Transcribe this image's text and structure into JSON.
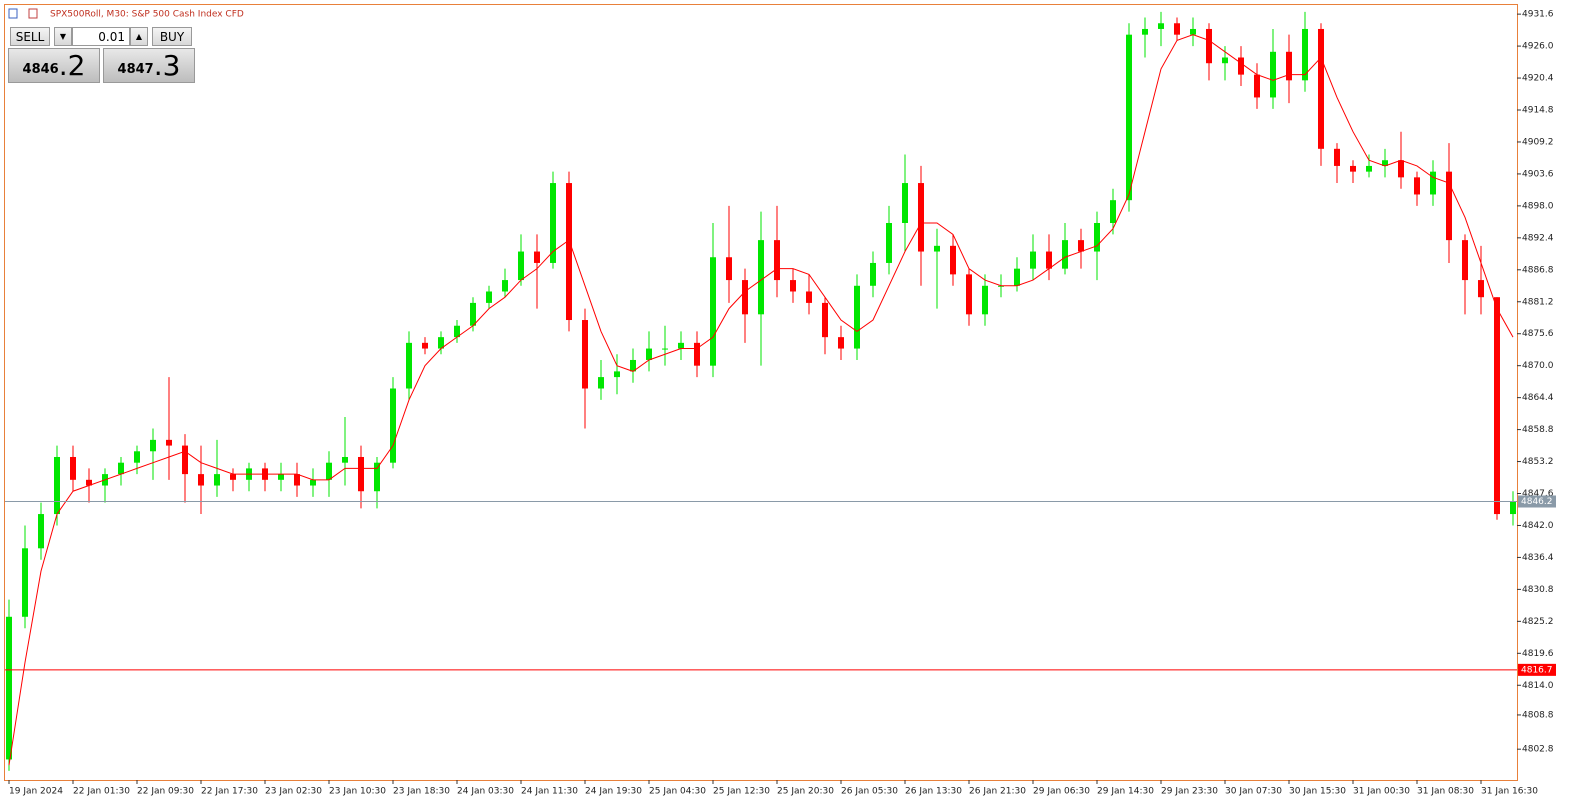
{
  "chart_data": {
    "type": "candlestick",
    "title": "SPX500Roll, M30:  S&P 500 Cash Index CFD",
    "categories": [
      "19 Jan 2024",
      null,
      null,
      null,
      "22 Jan 01:30",
      null,
      null,
      null,
      "22 Jan 09:30",
      null,
      null,
      null,
      "22 Jan 17:30",
      null,
      null,
      null,
      "23 Jan 02:30",
      null,
      null,
      null,
      "23 Jan 10:30",
      null,
      null,
      null,
      "23 Jan 18:30",
      null,
      null,
      null,
      "24 Jan 03:30",
      null,
      null,
      null,
      "24 Jan 11:30",
      null,
      null,
      null,
      "24 Jan 19:30",
      null,
      null,
      null,
      "25 Jan 04:30",
      null,
      null,
      null,
      "25 Jan 12:30",
      null,
      null,
      null,
      "25 Jan 20:30",
      null,
      null,
      null,
      "26 Jan 05:30",
      null,
      null,
      null,
      "26 Jan 13:30",
      null,
      null,
      null,
      "26 Jan 21:30",
      null,
      null,
      null,
      "29 Jan 06:30",
      null,
      null,
      null,
      "29 Jan 14:30",
      null,
      null,
      null,
      "29 Jan 23:30",
      null,
      null,
      null,
      "30 Jan 07:30",
      null,
      null,
      null,
      "30 Jan 15:30",
      null,
      null,
      null,
      "31 Jan 00:30",
      null,
      null,
      null,
      "31 Jan 08:30",
      null,
      null,
      null,
      "31 Jan 16:30",
      null,
      null
    ],
    "open": [
      4801,
      4826,
      4838,
      4844,
      4854,
      4850,
      4849,
      4851,
      4853,
      4855,
      4857,
      4856,
      4851,
      4849,
      4851,
      4850,
      4852,
      4850,
      4851,
      4849,
      4850,
      4853,
      4854,
      4848,
      4853,
      4866,
      4874,
      4873,
      4875,
      4877,
      4881,
      4883,
      4885,
      4890,
      4888,
      4902,
      4878,
      4866,
      4868,
      4869,
      4871,
      4873,
      4873,
      4874,
      4870,
      4889,
      4885,
      4879,
      4892,
      4885,
      4883,
      4881,
      4875,
      4873,
      4884,
      4888,
      4895,
      4902,
      4890,
      4891,
      4886,
      4879,
      4884,
      4884,
      4887,
      4890,
      4887,
      4892,
      4890,
      4895,
      4899,
      4928,
      4929,
      4930,
      4928,
      4929,
      4923,
      4924,
      4921,
      4917,
      4925,
      4920,
      4929,
      4908,
      4905,
      4904,
      4905,
      4906,
      4903,
      4900,
      4904,
      4892,
      4885,
      4882,
      4844
    ],
    "high": [
      4829,
      4842,
      4846,
      4856,
      4856,
      4852,
      4852,
      4854,
      4856,
      4859,
      4868,
      4858,
      4856,
      4857,
      4852,
      4853,
      4853,
      4853,
      4853,
      4852,
      4855,
      4861,
      4856,
      4854,
      4868,
      4876,
      4875,
      4876,
      4878,
      4882,
      4884,
      4887,
      4893,
      4893,
      4904,
      4904,
      4880,
      4871,
      4872,
      4873,
      4876,
      4877,
      4876,
      4876,
      4895,
      4898,
      4887,
      4897,
      4898,
      4887,
      4886,
      4882,
      4877,
      4886,
      4890,
      4898,
      4907,
      4905,
      4894,
      4893,
      4887,
      4886,
      4886,
      4889,
      4893,
      4893,
      4895,
      4894,
      4897,
      4901,
      4930,
      4931,
      4932,
      4931,
      4931,
      4930,
      4926,
      4926,
      4923,
      4929,
      4928,
      4932,
      4930,
      4909,
      4906,
      4907,
      4908,
      4911,
      4904,
      4906,
      4909,
      4893,
      4891,
      4882,
      4848
    ],
    "low": [
      4799,
      4824,
      4836,
      4842,
      4848,
      4846,
      4846,
      4849,
      4851,
      4850,
      4850,
      4846,
      4844,
      4847,
      4848,
      4848,
      4848,
      4848,
      4847,
      4847,
      4847,
      4849,
      4845,
      4845,
      4852,
      4864,
      4872,
      4872,
      4874,
      4876,
      4880,
      4882,
      4884,
      4880,
      4887,
      4876,
      4859,
      4864,
      4865,
      4867,
      4869,
      4870,
      4871,
      4868,
      4868,
      4881,
      4874,
      4870,
      4882,
      4881,
      4879,
      4872,
      4871,
      4871,
      4882,
      4886,
      4890,
      4884,
      4880,
      4884,
      4877,
      4877,
      4882,
      4883,
      4885,
      4885,
      4886,
      4887,
      4885,
      4893,
      4897,
      4924,
      4926,
      4927,
      4926,
      4920,
      4920,
      4919,
      4915,
      4915,
      4916,
      4918,
      4905,
      4902,
      4902,
      4903,
      4903,
      4901,
      4898,
      4898,
      4888,
      4879,
      4879,
      4843,
      4842
    ],
    "close": [
      4826,
      4838,
      4844,
      4854,
      4850,
      4849,
      4851,
      4853,
      4855,
      4857,
      4856,
      4851,
      4849,
      4851,
      4850,
      4852,
      4850,
      4851,
      4849,
      4850,
      4853,
      4854,
      4848,
      4853,
      4866,
      4874,
      4873,
      4875,
      4877,
      4881,
      4883,
      4885,
      4890,
      4888,
      4902,
      4878,
      4866,
      4868,
      4869,
      4871,
      4873,
      4873,
      4874,
      4870,
      4889,
      4885,
      4879,
      4892,
      4885,
      4883,
      4881,
      4875,
      4873,
      4884,
      4888,
      4895,
      4902,
      4890,
      4891,
      4886,
      4879,
      4884,
      4884,
      4887,
      4890,
      4887,
      4892,
      4890,
      4895,
      4899,
      4928,
      4929,
      4930,
      4928,
      4929,
      4923,
      4924,
      4921,
      4917,
      4925,
      4920,
      4929,
      4908,
      4905,
      4904,
      4905,
      4906,
      4903,
      4900,
      4904,
      4892,
      4885,
      4882,
      4844,
      4846.2
    ],
    "up_color": "#00e600",
    "down_color": "#ff0000",
    "ma": {
      "color": "#ff0000",
      "values": [
        4800,
        4818,
        4834,
        4844,
        4848,
        4849,
        4850,
        4851,
        4852,
        4853,
        4854,
        4855,
        4853,
        4852,
        4851,
        4851,
        4851,
        4851,
        4851,
        4850,
        4850,
        4852,
        4852,
        4852,
        4856,
        4864,
        4870,
        4873,
        4875,
        4877,
        4880,
        4882,
        4885,
        4887,
        4890,
        4892,
        4884,
        4876,
        4870,
        4869,
        4871,
        4872,
        4873,
        4873,
        4875,
        4880,
        4883,
        4885,
        4887,
        4887,
        4886,
        4882,
        4878,
        4876,
        4878,
        4884,
        4890,
        4895,
        4895,
        4893,
        4887,
        4885,
        4884,
        4884,
        4885,
        4887,
        4889,
        4890,
        4891,
        4894,
        4900,
        4911,
        4922,
        4927,
        4928,
        4927,
        4925,
        4923,
        4921,
        4920,
        4921,
        4921,
        4924,
        4917,
        4911,
        4906,
        4905,
        4906,
        4905,
        4903,
        4902,
        4896,
        4888,
        4880,
        4875
      ]
    },
    "ylim": [
      4797.4,
      4933.2
    ],
    "yticks": [
      4931.6,
      {
        "value": 4926,
        "label": "4926.0"
      },
      4920.4,
      4914.8,
      4909.2,
      4903.6,
      {
        "value": 4898,
        "label": "4898.0"
      },
      4892.4,
      4886.8,
      4881.2,
      4875.6,
      {
        "value": 4870,
        "label": "4870.0"
      },
      4864.4,
      4858.8,
      4853.2,
      4847.6,
      {
        "value": 4842,
        "label": "4842.0"
      },
      4836.4,
      4830.8,
      4825.2,
      4819.6,
      {
        "value": 4814,
        "label": "4814.0"
      },
      4808.8,
      4802.8
    ],
    "hlines": [
      {
        "value": 4846.2,
        "color": "#8a9aa8"
      },
      {
        "value": 4816.7,
        "color": "#ff0000"
      }
    ]
  },
  "trade_panel": {
    "sell": "SELL",
    "buy": "BUY",
    "lot": "0.01",
    "bid": {
      "main": "4846",
      "frac": ".2"
    },
    "ask": {
      "main": "4847",
      "frac": ".3"
    }
  }
}
